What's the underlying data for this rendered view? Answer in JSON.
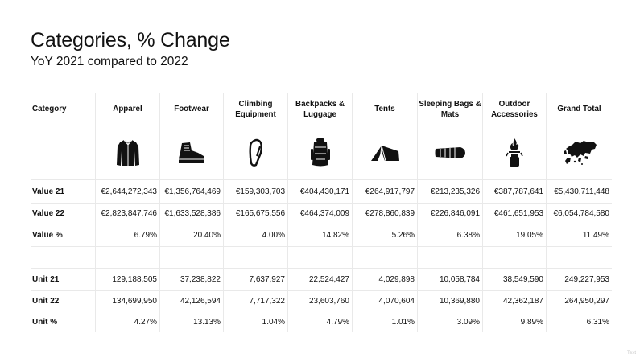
{
  "title": "Categories, % Change",
  "subtitle": "YoY 2021 compared to 2022",
  "columns": [
    "Category",
    "Apparel",
    "Footwear",
    "Climbing Equipment",
    "Backpacks & Luggage",
    "Tents",
    "Sleeping Bags & Mats",
    "Outdoor Accessories",
    "Grand Total"
  ],
  "icons": [
    "jacket-icon",
    "boot-icon",
    "carabiner-icon",
    "backpack-icon",
    "tent-icon",
    "sleeping-bag-icon",
    "camping-stove-icon",
    "europe-map-icon"
  ],
  "rows": [
    {
      "label": "Value 21",
      "values": [
        "€2,644,272,343",
        "€1,356,764,469",
        "€159,303,703",
        "€404,430,171",
        "€264,917,797",
        "€213,235,326",
        "€387,787,641",
        "€5,430,711,448"
      ]
    },
    {
      "label": "Value 22",
      "values": [
        "€2,823,847,746",
        "€1,633,528,386",
        "€165,675,556",
        "€464,374,009",
        "€278,860,839",
        "€226,846,091",
        "€461,651,953",
        "€6,054,784,580"
      ]
    },
    {
      "label": "Value %",
      "values": [
        "6.79%",
        "20.40%",
        "4.00%",
        "14.82%",
        "5.26%",
        "6.38%",
        "19.05%",
        "11.49%"
      ]
    },
    {
      "label": "",
      "values": [
        "",
        "",
        "",
        "",
        "",
        "",
        "",
        ""
      ]
    },
    {
      "label": "Unit 21",
      "values": [
        "129,188,505",
        "37,238,822",
        "7,637,927",
        "22,524,427",
        "4,029,898",
        "10,058,784",
        "38,549,590",
        "249,227,953"
      ]
    },
    {
      "label": "Unit 22",
      "values": [
        "134,699,950",
        "42,126,594",
        "7,717,322",
        "23,603,760",
        "4,070,604",
        "10,369,880",
        "42,362,187",
        "264,950,297"
      ]
    },
    {
      "label": "Unit %",
      "values": [
        "4.27%",
        "13.13%",
        "1.04%",
        "4.79%",
        "1.01%",
        "3.09%",
        "9.89%",
        "6.31%"
      ]
    }
  ],
  "footer_text": "Text"
}
